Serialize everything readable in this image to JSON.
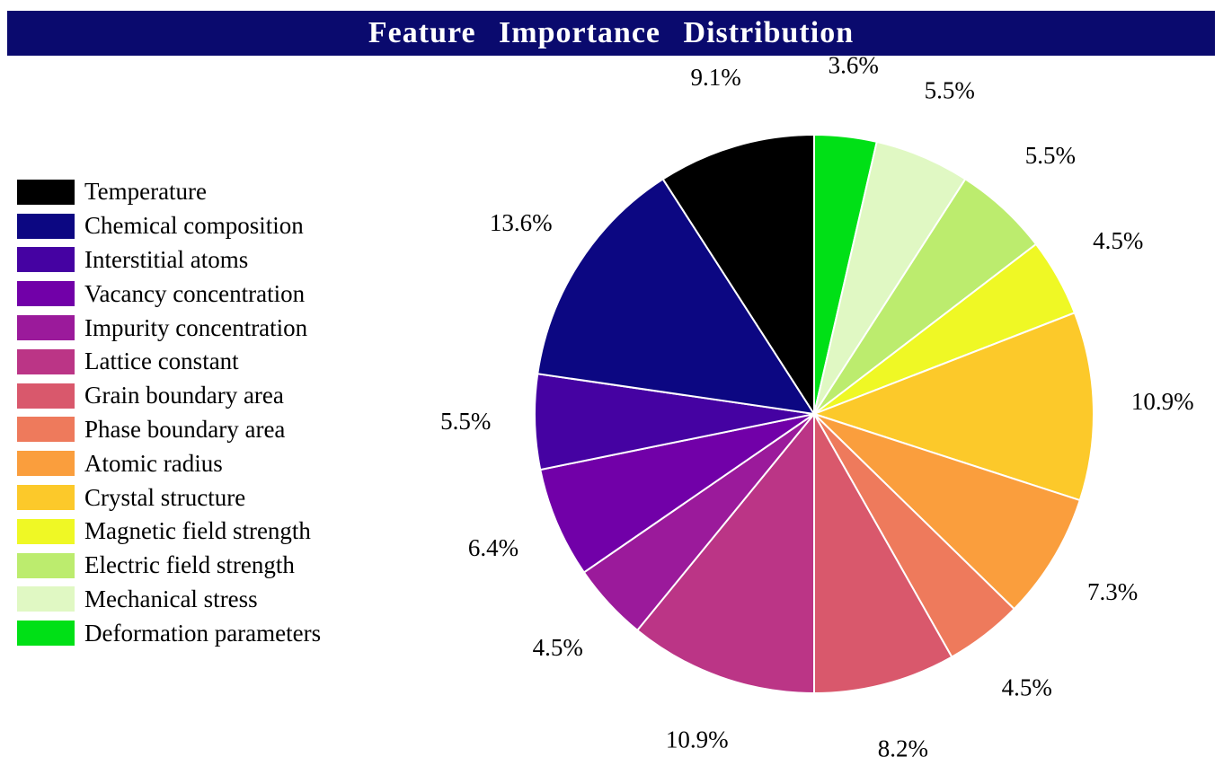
{
  "chart_data": {
    "type": "pie",
    "title": "Feature   Importance   Distribution",
    "start": "12 o'clock, clockwise",
    "legend_position": "left",
    "slices": [
      {
        "name": "Deformation parameters",
        "value": 3.6,
        "label": "3.6%",
        "color": "#00e016"
      },
      {
        "name": "Mechanical stress",
        "value": 5.5,
        "label": "5.5%",
        "color": "#e0f8c3"
      },
      {
        "name": "Electric field strength",
        "value": 5.5,
        "label": "5.5%",
        "color": "#bcec6e"
      },
      {
        "name": "Magnetic field strength",
        "value": 4.5,
        "label": "4.5%",
        "color": "#eff825"
      },
      {
        "name": "Crystal structure",
        "value": 10.9,
        "label": "10.9%",
        "color": "#fcc92a"
      },
      {
        "name": "Atomic radius",
        "value": 7.3,
        "label": "7.3%",
        "color": "#fa9e3d"
      },
      {
        "name": "Phase boundary area",
        "value": 4.5,
        "label": "4.5%",
        "color": "#ee7a5c"
      },
      {
        "name": "Grain boundary area",
        "value": 8.2,
        "label": "8.2%",
        "color": "#d9586c"
      },
      {
        "name": "Lattice constant",
        "value": 10.9,
        "label": "10.9%",
        "color": "#bb3586"
      },
      {
        "name": "Impurity concentration",
        "value": 4.5,
        "label": "4.5%",
        "color": "#9b1a9b"
      },
      {
        "name": "Vacancy concentration",
        "value": 6.4,
        "label": "6.4%",
        "color": "#7100a8"
      },
      {
        "name": "Interstitial atoms",
        "value": 5.5,
        "label": "5.5%",
        "color": "#4502a2"
      },
      {
        "name": "Chemical composition",
        "value": 13.6,
        "label": "13.6%",
        "color": "#0c0782"
      },
      {
        "name": "Temperature",
        "value": 9.1,
        "label": "9.1%",
        "color": "#000000"
      }
    ]
  }
}
